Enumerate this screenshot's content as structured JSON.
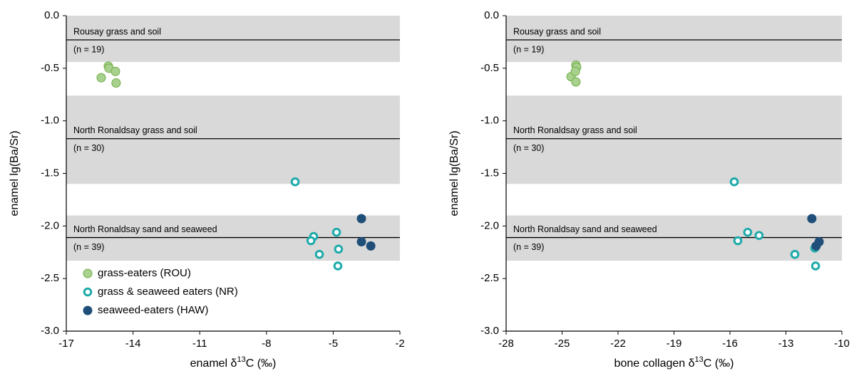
{
  "chart_data": [
    {
      "type": "scatter",
      "ylabel": "enamel lg(Ba/Sr)",
      "xlabel": [
        "enamel δ",
        "13",
        "C (‰)"
      ],
      "xlim": [
        -17,
        -2
      ],
      "xticks": [
        -17,
        -14,
        -11,
        -8,
        -5,
        -2
      ],
      "ylim": [
        -3,
        0
      ],
      "yticks": [
        {
          "value": 0,
          "label": "0.0"
        },
        -0.5,
        {
          "value": -1,
          "label": "-1.0"
        },
        -1.5,
        {
          "value": -2,
          "label": "-2.0"
        },
        -2.5,
        {
          "value": -3,
          "label": "-3.0"
        }
      ],
      "bands": [
        {
          "label": "Rousay grass and soil",
          "n_label": "(n = 19)",
          "ymax": 0,
          "ymin": -0.44,
          "line": -0.23
        },
        {
          "label": "North Ronaldsay grass and soil",
          "n_label": "(n = 30)",
          "ymax": -0.76,
          "ymin": -1.6,
          "line": -1.17
        },
        {
          "label": "North Ronaldsay sand and seaweed",
          "n_label": "(n = 39)",
          "ymax": -1.9,
          "ymin": -2.33,
          "line": -2.11
        }
      ],
      "legend": "lower left",
      "series": [
        {
          "name": "grass-eaters (ROU)",
          "color": "#a9d18e",
          "marker": "filled",
          "x": [
            -15.43,
            -15.11,
            -15.08,
            -14.79,
            -14.76
          ],
          "values": [
            -0.59,
            -0.48,
            -0.5,
            -0.53,
            -0.64
          ]
        },
        {
          "name": "grass & seaweed eaters (NR)",
          "color": "#1eaaaa",
          "marker": "hollow",
          "x": [
            -6.71,
            -5.88,
            -6.0,
            -5.62,
            -4.85,
            -4.76,
            -4.79
          ],
          "values": [
            -1.58,
            -2.1,
            -2.14,
            -2.27,
            -2.06,
            -2.22,
            -2.38
          ]
        },
        {
          "name": "seaweed-eaters (HAW)",
          "color": "#1f4e79",
          "marker": "filled",
          "x": [
            -3.73,
            -3.73,
            -3.31
          ],
          "values": [
            -1.93,
            -2.15,
            -2.19
          ]
        }
      ]
    },
    {
      "type": "scatter",
      "ylabel": "enamel lg(Ba/Sr)",
      "xlabel": [
        "bone collagen δ",
        "13",
        "C (‰)"
      ],
      "xlim": [
        -28,
        -10
      ],
      "xticks": [
        -28,
        -25,
        -22,
        -19,
        -16,
        -13,
        -10
      ],
      "ylim": [
        -3,
        0
      ],
      "yticks": [
        {
          "value": 0,
          "label": "0.0"
        },
        -0.5,
        {
          "value": -1,
          "label": "-1.0"
        },
        -1.5,
        {
          "value": -2,
          "label": "-2.0"
        },
        -2.5,
        {
          "value": -3,
          "label": "-3.0"
        }
      ],
      "bands": [
        {
          "label": "Rousay grass and soil",
          "n_label": "(n = 19)",
          "ymax": 0,
          "ymin": -0.44,
          "line": -0.23
        },
        {
          "label": "North Ronaldsay grass and soil",
          "n_label": "(n = 30)",
          "ymax": -0.76,
          "ymin": -1.6,
          "line": -1.17
        },
        {
          "label": "North Ronaldsay sand and seaweed",
          "n_label": "(n = 39)",
          "ymax": -1.9,
          "ymin": -2.33,
          "line": -2.11
        }
      ],
      "series": [
        {
          "color": "#a9d18e",
          "marker": "filled",
          "x": [
            -24.52,
            -24.26,
            -24.22,
            -24.29,
            -24.26
          ],
          "values": [
            -0.58,
            -0.47,
            -0.49,
            -0.53,
            -0.63
          ]
        },
        {
          "color": "#1eaaaa",
          "marker": "hollow",
          "x": [
            -15.77,
            -15.58,
            -15.05,
            -14.44,
            -12.52,
            -11.45,
            -11.41
          ],
          "values": [
            -1.58,
            -2.14,
            -2.06,
            -2.09,
            -2.27,
            -2.21,
            -2.38
          ]
        },
        {
          "color": "#1f4e79",
          "marker": "filled",
          "x": [
            -11.61,
            -11.38,
            -11.22
          ],
          "values": [
            -1.93,
            -2.19,
            -2.15
          ]
        }
      ]
    }
  ]
}
